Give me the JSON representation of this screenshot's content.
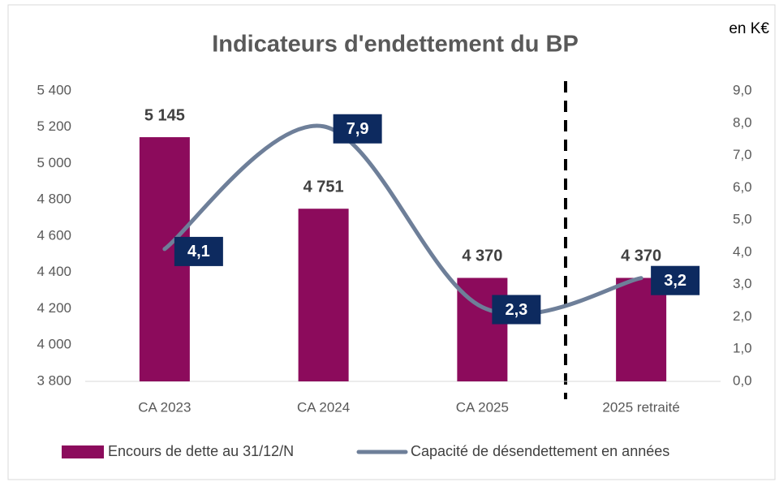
{
  "chart_data": {
    "type": "bar_line",
    "title": "Indicateurs d'endettement du BP",
    "annotation": "en K€",
    "categories": [
      "CA 2023",
      "CA 2024",
      "CA 2025",
      "2025 retraité"
    ],
    "series": [
      {
        "name": "Encours de dette au 31/12/N",
        "type": "bar",
        "color": "#8c0b5c",
        "axis": "y",
        "values": [
          5145,
          4751,
          4370,
          4370
        ],
        "value_labels": [
          "5 145",
          "4 751",
          "4 370",
          "4 370"
        ]
      },
      {
        "name": "Capacité de désendettement en années",
        "type": "line",
        "color": "#6e7f99",
        "axis": "y2",
        "label_color": "#0d2a5f",
        "values": [
          4.1,
          7.9,
          2.3,
          3.2
        ],
        "value_labels": [
          "4,1",
          "7,9",
          "2,3",
          "3,2"
        ]
      }
    ],
    "ylim": [
      3800,
      5400
    ],
    "yticks": [
      {
        "value": 3800,
        "label": "3 800"
      },
      {
        "value": 4000,
        "label": "4 000"
      },
      {
        "value": 4200,
        "label": "4 200"
      },
      {
        "value": 4400,
        "label": "4 400"
      },
      {
        "value": 4600,
        "label": "4 600"
      },
      {
        "value": 4800,
        "label": "4 800"
      },
      {
        "value": 5000,
        "label": "5 000"
      },
      {
        "value": 5200,
        "label": "5 200"
      },
      {
        "value": 5400,
        "label": "5 400"
      }
    ],
    "y2lim": [
      0,
      9
    ],
    "y2ticks": [
      {
        "value": 0,
        "label": "0,0"
      },
      {
        "value": 1,
        "label": "1,0"
      },
      {
        "value": 2,
        "label": "2,0"
      },
      {
        "value": 3,
        "label": "3,0"
      },
      {
        "value": 4,
        "label": "4,0"
      },
      {
        "value": 5,
        "label": "5,0"
      },
      {
        "value": 6,
        "label": "6,0"
      },
      {
        "value": 7,
        "label": "7,0"
      },
      {
        "value": 8,
        "label": "8,0"
      },
      {
        "value": 9,
        "label": "9,0"
      }
    ],
    "grid": false,
    "legend": "bottom"
  }
}
